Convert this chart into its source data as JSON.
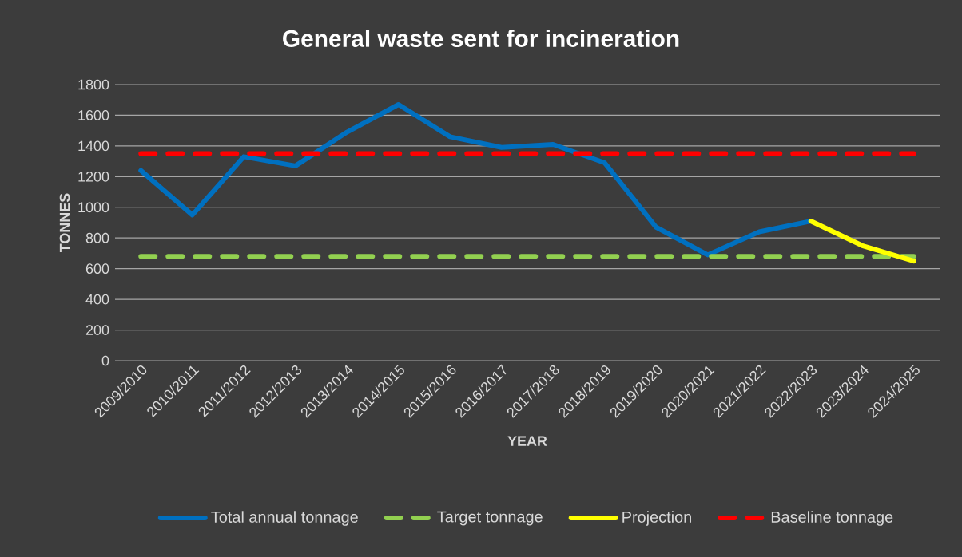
{
  "chart_data": {
    "type": "line",
    "title": "General waste sent for incineration",
    "xlabel": "YEAR",
    "ylabel": "TONNES",
    "categories": [
      "2009/2010",
      "2010/2011",
      "2011/2012",
      "2012/2013",
      "2013/2014",
      "2014/2015",
      "2015/2016",
      "2016/2017",
      "2017/2018",
      "2018/2019",
      "2019/2020",
      "2020/2021",
      "2021/2022",
      "2022/2023",
      "2023/2024",
      "2024/2025"
    ],
    "series": [
      {
        "name": "Total annual tonnage",
        "color": "#0070c0",
        "line_style": "solid",
        "values": [
          1240,
          950,
          1330,
          1270,
          1490,
          1670,
          1460,
          1390,
          1410,
          1290,
          870,
          690,
          840,
          910,
          null,
          null
        ]
      },
      {
        "name": "Target tonnage",
        "color": "#92d050",
        "line_style": "dashed",
        "values": [
          680,
          680,
          680,
          680,
          680,
          680,
          680,
          680,
          680,
          680,
          680,
          680,
          680,
          680,
          680,
          680
        ]
      },
      {
        "name": "Projection",
        "color": "#ffff00",
        "line_style": "solid",
        "values": [
          null,
          null,
          null,
          null,
          null,
          null,
          null,
          null,
          null,
          null,
          null,
          null,
          null,
          910,
          750,
          650
        ]
      },
      {
        "name": "Baseline tonnage",
        "color": "#ff0000",
        "line_style": "dashed",
        "values": [
          1350,
          1350,
          1350,
          1350,
          1350,
          1350,
          1350,
          1350,
          1350,
          1350,
          1350,
          1350,
          1350,
          1350,
          1350,
          1350
        ]
      }
    ],
    "ylim": [
      0,
      1800
    ],
    "yticks": [
      0,
      200,
      400,
      600,
      800,
      1000,
      1200,
      1400,
      1600,
      1800
    ],
    "grid": "y",
    "legend": "bottom",
    "marker": "none"
  }
}
